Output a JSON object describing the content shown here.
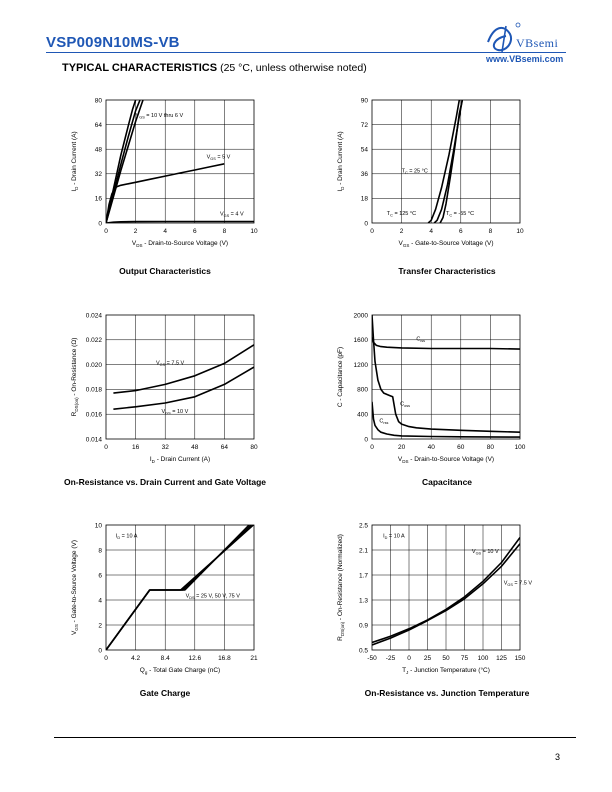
{
  "header": {
    "part_number": "VSP009N10MS-VB",
    "brand": "VBsemi",
    "website": "www.VBsemi.com"
  },
  "section": {
    "title": "TYPICAL CHARACTERISTICS",
    "conditions": "(25 °C, unless otherwise noted)"
  },
  "footer": {
    "page_number": "3"
  },
  "chart_data": [
    {
      "id": "output",
      "type": "line",
      "title": "Output Characteristics",
      "xlabel": "V_DS - Drain-to-Source Voltage (V)",
      "ylabel": "I_D - Drain Current (A)",
      "xlim": [
        0,
        10
      ],
      "ylim": [
        0,
        80
      ],
      "xticks": [
        0,
        2,
        4,
        6,
        8,
        10
      ],
      "yticks": [
        0,
        16,
        32,
        48,
        64,
        80
      ],
      "series": [
        {
          "name": "V_GS = 10 V thru 6 V",
          "x": [
            0,
            0.5,
            1.0,
            1.5,
            1.8,
            2.0
          ],
          "y": [
            0,
            22,
            44,
            63,
            74,
            80
          ]
        },
        {
          "name": "V_GS = 10 V thru 6 V (b)",
          "x": [
            0,
            0.5,
            1.0,
            1.5,
            2.0,
            2.3
          ],
          "y": [
            0,
            19,
            38,
            56,
            73,
            80
          ]
        },
        {
          "name": "V_GS = 10 V thru 6 V (c)",
          "x": [
            0,
            0.5,
            1.0,
            1.5,
            2.0,
            2.5
          ],
          "y": [
            0,
            17,
            34,
            50,
            66,
            80
          ]
        },
        {
          "name": "V_GS = 5 V",
          "x": [
            0,
            0.2,
            0.4,
            0.7,
            1.0,
            1.5,
            2,
            3,
            4,
            5,
            6,
            7,
            8
          ],
          "y": [
            0,
            12,
            19,
            23.5,
            24.5,
            25.5,
            26.5,
            28.5,
            30.5,
            32.5,
            34.5,
            36.5,
            38.5
          ]
        },
        {
          "name": "V_GS = 4 V",
          "x": [
            0,
            0.5,
            1,
            2,
            4,
            6,
            8,
            10
          ],
          "y": [
            0,
            0.5,
            0.8,
            0.9,
            1.0,
            1.0,
            1.0,
            1.0
          ]
        }
      ],
      "annotations": [
        {
          "text": "V_GS = 10 V thru 6 V",
          "x": 2.0,
          "y": 69
        },
        {
          "text": "V_GS = 5 V",
          "x": 6.8,
          "y": 42
        },
        {
          "text": "V_GS = 4 V",
          "x": 7.7,
          "y": 5
        }
      ]
    },
    {
      "id": "transfer",
      "type": "line",
      "title": "Transfer Characteristics",
      "xlabel": "V_GS - Gate-to-Source Voltage (V)",
      "ylabel": "I_D - Drain Current (A)",
      "xlim": [
        0,
        10
      ],
      "ylim": [
        0,
        90
      ],
      "xticks": [
        0,
        2,
        4,
        6,
        8,
        10
      ],
      "yticks": [
        0,
        18,
        36,
        54,
        72,
        90
      ],
      "series": [
        {
          "name": "T_C = 125 °C",
          "x": [
            3.8,
            4.0,
            4.3,
            4.7,
            5.2,
            5.7,
            5.9
          ],
          "y": [
            0,
            2,
            10,
            26,
            50,
            78,
            90
          ]
        },
        {
          "name": "T_C = 25 °C",
          "x": [
            4.2,
            4.4,
            4.7,
            5.1,
            5.5,
            5.9,
            6.1
          ],
          "y": [
            0,
            2,
            10,
            28,
            52,
            78,
            90
          ]
        },
        {
          "name": "T_C = -55 °C",
          "x": [
            4.6,
            4.8,
            5.0,
            5.3,
            5.6,
            5.9,
            6.1
          ],
          "y": [
            0,
            4,
            14,
            34,
            56,
            80,
            90
          ]
        }
      ],
      "annotations": [
        {
          "text": "T_C = 25 °C",
          "x": 2.0,
          "y": 37
        },
        {
          "text": "T_C = 125 °C",
          "x": 1.0,
          "y": 6
        },
        {
          "text": "T_C = -55 °C",
          "x": 5.0,
          "y": 6
        }
      ]
    },
    {
      "id": "onres",
      "type": "line",
      "title": "On-Resistance vs. Drain Current and Gate Voltage",
      "xlabel": "I_D - Drain Current (A)",
      "ylabel": "R_DS(on) - On-Resistance (Ω)",
      "xlim": [
        0,
        80
      ],
      "ylim": [
        0.014,
        0.024
      ],
      "xticks": [
        0,
        16,
        32,
        48,
        64,
        80
      ],
      "yticks": [
        0.014,
        0.016,
        0.018,
        0.02,
        0.022,
        0.024
      ],
      "ytick_labels": [
        "0.014",
        "0.016",
        "0.018",
        "0.020",
        "0.022",
        "0.024"
      ],
      "series": [
        {
          "name": "V_GS = 7.5 V",
          "x": [
            4,
            16,
            32,
            48,
            64,
            80
          ],
          "y": [
            0.0177,
            0.0179,
            0.0184,
            0.0191,
            0.0201,
            0.0216
          ]
        },
        {
          "name": "V_GS = 10 V",
          "x": [
            4,
            16,
            32,
            48,
            64,
            80
          ],
          "y": [
            0.0164,
            0.0166,
            0.0169,
            0.0174,
            0.0184,
            0.0198
          ]
        }
      ],
      "annotations": [
        {
          "text": "V_GS = 7.5 V",
          "x": 27,
          "y": 0.02
        },
        {
          "text": "V_GS = 10 V",
          "x": 30,
          "y": 0.0161
        }
      ]
    },
    {
      "id": "capacitance",
      "type": "line",
      "title": "Capacitance",
      "xlabel": "V_DS - Drain-to-Source Voltage (V)",
      "ylabel": "C - Capacitance (pF)",
      "xlim": [
        0,
        100
      ],
      "ylim": [
        0,
        2000
      ],
      "xticks": [
        0,
        20,
        40,
        60,
        80,
        100
      ],
      "yticks": [
        0,
        400,
        800,
        1200,
        1600,
        2000
      ],
      "series": [
        {
          "name": "C_iss",
          "x": [
            0,
            1,
            3,
            6,
            10,
            20,
            40,
            60,
            80,
            100
          ],
          "y": [
            1640,
            1560,
            1510,
            1490,
            1480,
            1470,
            1460,
            1460,
            1460,
            1450
          ]
        },
        {
          "name": "C_oss",
          "x": [
            0,
            1,
            2,
            4,
            6,
            8,
            10,
            12,
            14,
            16,
            18,
            20,
            25,
            30,
            40,
            60,
            80,
            100
          ],
          "y": [
            2000,
            1600,
            1250,
            950,
            800,
            740,
            720,
            700,
            680,
            400,
            280,
            240,
            200,
            180,
            160,
            140,
            125,
            110
          ]
        },
        {
          "name": "C_rss",
          "x": [
            0,
            1,
            2,
            4,
            6,
            10,
            15,
            20,
            40,
            60,
            100
          ],
          "y": [
            600,
            320,
            220,
            150,
            110,
            80,
            60,
            50,
            40,
            35,
            30
          ]
        }
      ],
      "annotations": [
        {
          "text": "C_iss",
          "x": 30,
          "y": 1590
        },
        {
          "text": "C_oss",
          "x": 19,
          "y": 540
        },
        {
          "text": "C_rss",
          "x": 5,
          "y": 270
        }
      ]
    },
    {
      "id": "gatecharge",
      "type": "line",
      "title": "Gate Charge",
      "xlabel": "Q_g - Total Gate Charge (nC)",
      "ylabel": "V_GS - Gate-to-Source Voltage (V)",
      "xlim": [
        0,
        21
      ],
      "ylim": [
        0,
        10
      ],
      "xticks": [
        0,
        4.2,
        8.4,
        12.6,
        16.8,
        21
      ],
      "yticks": [
        0,
        2,
        4,
        6,
        8,
        10
      ],
      "series": [
        {
          "name": "V_DS = 25 V",
          "x": [
            0,
            6.2,
            10.6,
            20.9
          ],
          "y": [
            0,
            4.8,
            4.8,
            10
          ]
        },
        {
          "name": "V_DS = 50 V",
          "x": [
            0,
            6.2,
            10.9,
            20.6
          ],
          "y": [
            0,
            4.8,
            4.8,
            10
          ]
        },
        {
          "name": "V_DS = 75 V",
          "x": [
            0,
            6.2,
            11.2,
            20.3
          ],
          "y": [
            0,
            4.8,
            4.8,
            10
          ]
        }
      ],
      "annotations": [
        {
          "text": "I_D = 10 A",
          "x": 1.4,
          "y": 9.0
        },
        {
          "text": "V_DS = 25 V, 50 V, 75 V",
          "x": 11.3,
          "y": 4.2
        }
      ]
    },
    {
      "id": "onres_temp",
      "type": "line",
      "title": "On-Resistance vs. Junction Temperature",
      "xlabel": "T_J - Junction Temperature (°C)",
      "ylabel": "R_DS(on) - On-Resistance (Normalized)",
      "xlim": [
        -50,
        150
      ],
      "ylim": [
        0.5,
        2.5
      ],
      "xticks": [
        -50,
        -25,
        0,
        25,
        50,
        75,
        100,
        125,
        150
      ],
      "yticks": [
        0.5,
        0.9,
        1.3,
        1.7,
        2.1,
        2.5
      ],
      "series": [
        {
          "name": "V_GS = 10 V",
          "x": [
            -50,
            -25,
            0,
            25,
            50,
            75,
            100,
            125,
            150
          ],
          "y": [
            0.62,
            0.72,
            0.84,
            0.98,
            1.15,
            1.35,
            1.6,
            1.9,
            2.3
          ]
        },
        {
          "name": "V_GS = 7.5 V",
          "x": [
            -50,
            -25,
            0,
            25,
            50,
            75,
            100,
            125,
            150
          ],
          "y": [
            0.58,
            0.69,
            0.82,
            0.97,
            1.13,
            1.32,
            1.56,
            1.84,
            2.2
          ]
        }
      ],
      "annotations": [
        {
          "text": "I_D = 10 A",
          "x": -35,
          "y": 2.3
        },
        {
          "text": "V_GS = 10 V",
          "x": 85,
          "y": 2.05
        },
        {
          "text": "V_GS = 7.5 V",
          "x": 128,
          "y": 1.55
        }
      ]
    }
  ]
}
